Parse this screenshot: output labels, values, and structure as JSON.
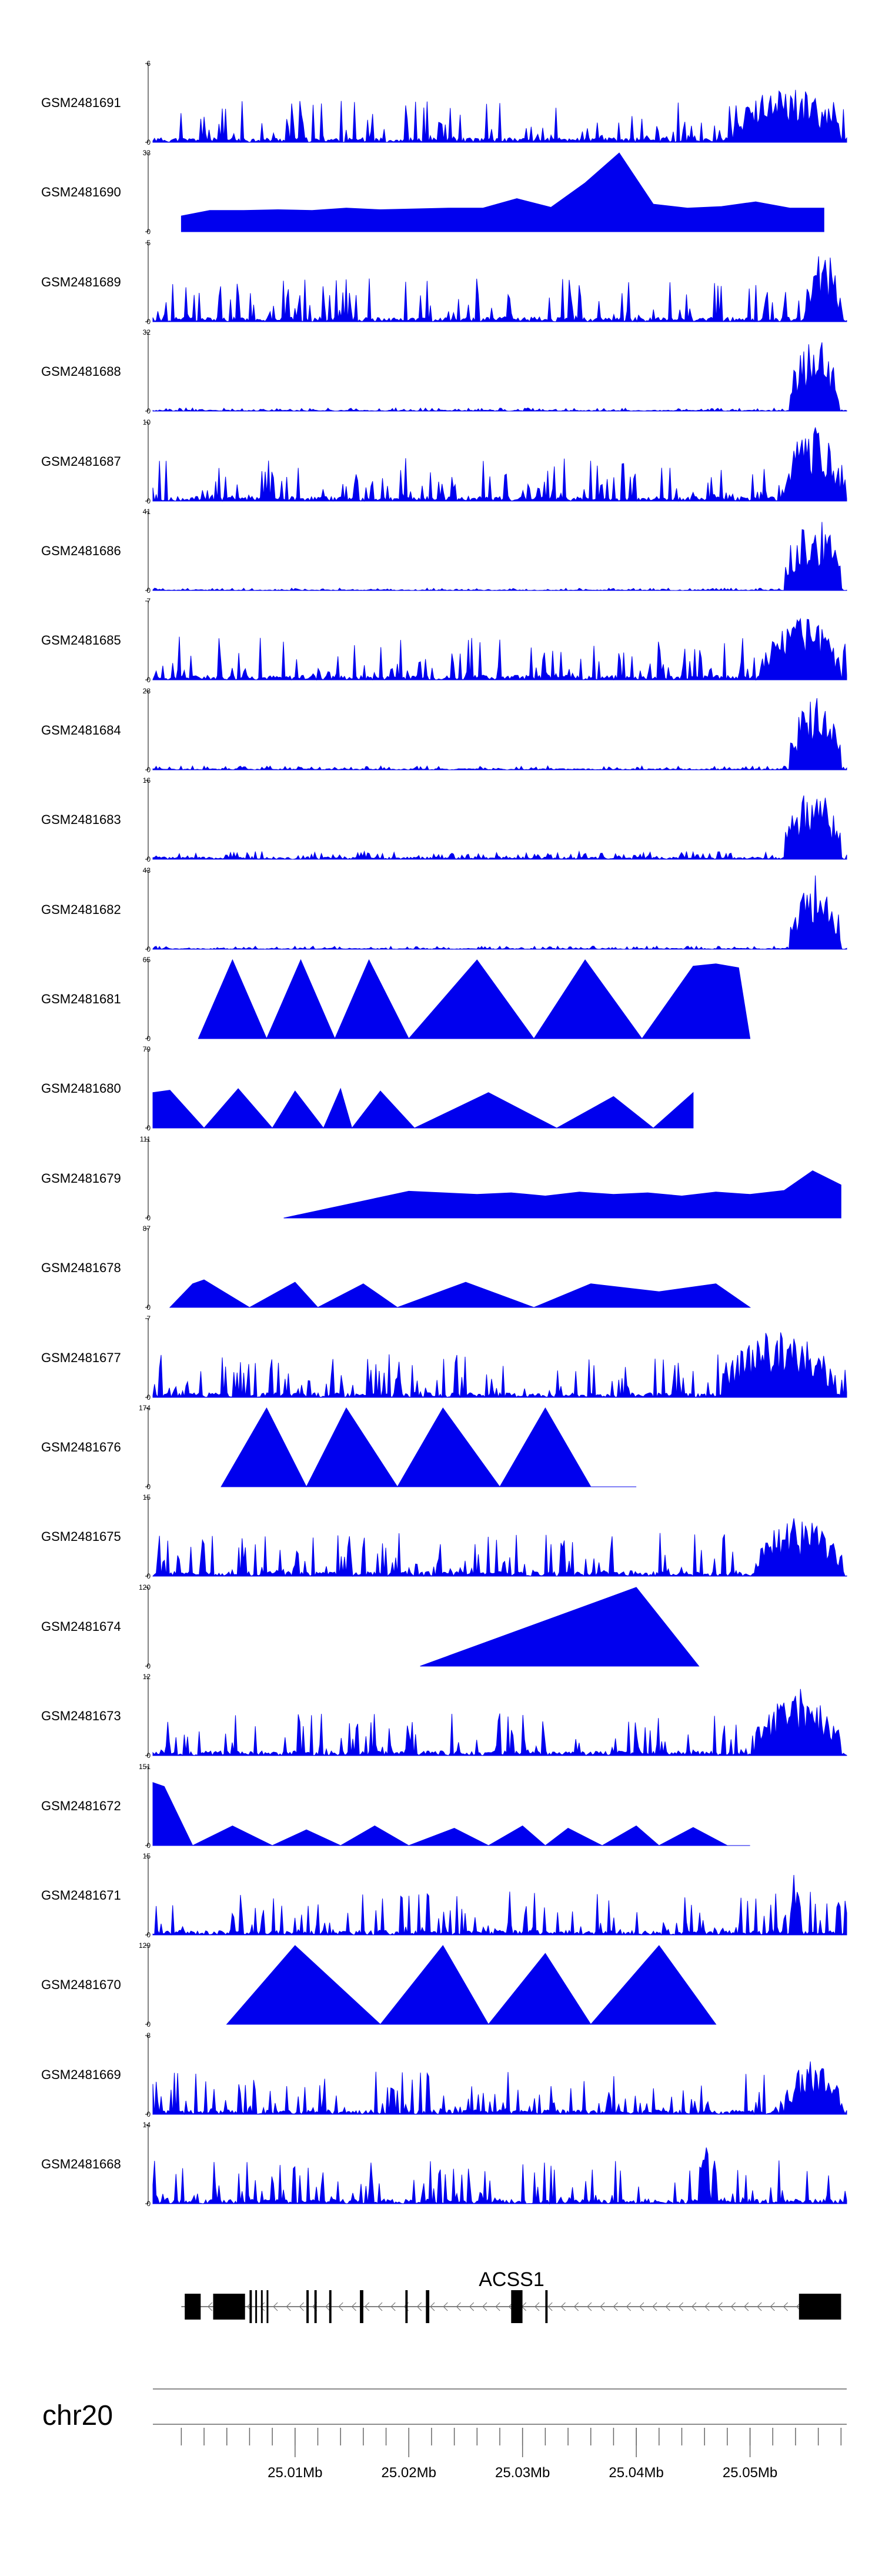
{
  "chart_data": {
    "type": "area",
    "title": "",
    "chromosome": "chr20",
    "x_range_mb": [
      24.9975,
      25.0585
    ],
    "tracks": [
      {
        "name": "GSM2481691",
        "ymax": "6",
        "ymin": "0",
        "style": "dense",
        "seed": 11,
        "density": 0.28,
        "hotspot": [
          [
            25.0485,
            25.058,
            0.7
          ]
        ]
      },
      {
        "name": "GSM2481690",
        "ymax": "33",
        "ymin": "0",
        "style": "sparse",
        "seed": 12,
        "x": [
          25.0,
          25.0025,
          25.0055,
          25.0085,
          25.0115,
          25.0145,
          25.0175,
          25.0205,
          25.0235,
          25.0265,
          25.0295,
          25.0325,
          25.0355,
          25.0385,
          25.0415,
          25.0445,
          25.0475,
          25.0505,
          25.0535,
          25.0565
        ],
        "y": [
          0.2,
          0.27,
          0.27,
          0.28,
          0.27,
          0.3,
          0.28,
          0.29,
          0.3,
          0.3,
          0.42,
          0.31,
          0.62,
          1.0,
          0.35,
          0.3,
          0.32,
          0.38,
          0.3,
          0.3
        ]
      },
      {
        "name": "GSM2481689",
        "ymax": "5",
        "ymin": "0",
        "style": "dense",
        "seed": 13,
        "density": 0.3,
        "hotspot": [
          [
            25.055,
            25.058,
            0.95
          ]
        ]
      },
      {
        "name": "GSM2481688",
        "ymax": "32",
        "ymin": "0",
        "style": "peak",
        "seed": 14,
        "base": 0.04,
        "hotspot": [
          [
            25.0535,
            25.0578,
            0.95
          ]
        ]
      },
      {
        "name": "GSM2481687",
        "ymax": "10",
        "ymin": "0",
        "style": "dense",
        "seed": 15,
        "density": 0.32,
        "hotspot": [
          [
            25.053,
            25.058,
            0.95
          ]
        ]
      },
      {
        "name": "GSM2481686",
        "ymax": "41",
        "ymin": "0",
        "style": "peak",
        "seed": 16,
        "base": 0.03,
        "hotspot": [
          [
            25.053,
            25.058,
            0.95
          ]
        ]
      },
      {
        "name": "GSM2481685",
        "ymax": "7",
        "ymin": "0",
        "style": "dense",
        "seed": 17,
        "density": 0.3,
        "hotspot": [
          [
            25.051,
            25.058,
            0.8
          ]
        ]
      },
      {
        "name": "GSM2481684",
        "ymax": "28",
        "ymin": "0",
        "style": "peak",
        "seed": 18,
        "base": 0.05,
        "hotspot": [
          [
            25.0535,
            25.058,
            0.95
          ]
        ]
      },
      {
        "name": "GSM2481683",
        "ymax": "16",
        "ymin": "0",
        "style": "peak",
        "seed": 19,
        "base": 0.1,
        "hotspot": [
          [
            25.053,
            25.058,
            0.9
          ]
        ]
      },
      {
        "name": "GSM2481682",
        "ymax": "43",
        "ymin": "0",
        "style": "peak",
        "seed": 20,
        "base": 0.04,
        "hotspot": [
          [
            25.0535,
            25.058,
            0.95
          ]
        ]
      },
      {
        "name": "GSM2481681",
        "ymax": "65",
        "ymin": "0",
        "style": "sparse",
        "seed": 21,
        "x": [
          25.0015,
          25.0045,
          25.0075,
          25.0105,
          25.0135,
          25.0165,
          25.02,
          25.026,
          25.031,
          25.0355,
          25.0405,
          25.045,
          25.047,
          25.049,
          25.05
        ],
        "y": [
          0,
          1.0,
          0,
          1.0,
          0,
          1.0,
          0,
          1.0,
          0,
          1.0,
          0,
          0.92,
          0.95,
          0.9,
          0
        ]
      },
      {
        "name": "GSM2481680",
        "ymax": "79",
        "ymin": "0",
        "style": "sparse",
        "seed": 22,
        "x": [
          24.9975,
          24.999,
          25.002,
          25.005,
          25.008,
          25.01,
          25.0125,
          25.014,
          25.015,
          25.0175,
          25.0205,
          25.027,
          25.033,
          25.038,
          25.0415,
          25.045
        ],
        "y": [
          0.45,
          0.48,
          0,
          0.5,
          0,
          0.47,
          0,
          0.5,
          0,
          0.47,
          0,
          0.45,
          0,
          0.4,
          0,
          0.45
        ]
      },
      {
        "name": "GSM2481679",
        "ymax": "111",
        "ymin": "0",
        "style": "sparse",
        "seed": 23,
        "x": [
          25.009,
          25.02,
          25.026,
          25.029,
          25.032,
          25.035,
          25.038,
          25.041,
          25.044,
          25.047,
          25.05,
          25.053,
          25.0555,
          25.058
        ],
        "y": [
          0,
          0.34,
          0.3,
          0.32,
          0.28,
          0.33,
          0.3,
          0.32,
          0.28,
          0.33,
          0.3,
          0.35,
          0.6,
          0.42
        ]
      },
      {
        "name": "GSM2481678",
        "ymax": "87",
        "ymin": "0",
        "style": "sparse",
        "seed": 24,
        "x": [
          24.999,
          25.001,
          25.002,
          25.006,
          25.01,
          25.012,
          25.016,
          25.019,
          25.025,
          25.031,
          25.036,
          25.042,
          25.047,
          25.05
        ],
        "y": [
          0,
          0.3,
          0.35,
          0,
          0.32,
          0,
          0.3,
          0,
          0.32,
          0,
          0.3,
          0.2,
          0.3,
          0
        ]
      },
      {
        "name": "GSM2481677",
        "ymax": "7",
        "ymin": "0",
        "style": "dense",
        "seed": 25,
        "density": 0.34,
        "hotspot": [
          [
            25.0475,
            25.0575,
            0.85
          ]
        ]
      },
      {
        "name": "GSM2481676",
        "ymax": "174",
        "ymin": "0",
        "style": "sparse",
        "seed": 26,
        "x": [
          25.0035,
          25.0075,
          25.011,
          25.0145,
          25.019,
          25.023,
          25.028,
          25.032,
          25.036,
          25.04
        ],
        "y": [
          0,
          1.0,
          0,
          1.0,
          0,
          1.0,
          0,
          1.0,
          0,
          0
        ]
      },
      {
        "name": "GSM2481675",
        "ymax": "15",
        "ymin": "0",
        "style": "dense",
        "seed": 27,
        "density": 0.34,
        "hotspot": [
          [
            25.0505,
            25.058,
            0.75
          ]
        ]
      },
      {
        "name": "GSM2481674",
        "ymax": "120",
        "ymin": "0",
        "style": "sparse",
        "seed": 28,
        "x": [
          25.021,
          25.04,
          25.0455
        ],
        "y": [
          0,
          1.0,
          0
        ]
      },
      {
        "name": "GSM2481673",
        "ymax": "12",
        "ymin": "0",
        "style": "dense",
        "seed": 29,
        "density": 0.28,
        "hotspot": [
          [
            25.0505,
            25.058,
            0.85
          ]
        ]
      },
      {
        "name": "GSM2481672",
        "ymax": "151",
        "ymin": "0",
        "style": "sparse",
        "seed": 30,
        "x": [
          24.9975,
          24.9985,
          25.001,
          25.0045,
          25.008,
          25.011,
          25.014,
          25.017,
          25.02,
          25.024,
          25.027,
          25.03,
          25.032,
          25.034,
          25.037,
          25.04,
          25.042,
          25.045,
          25.048,
          25.05
        ],
        "y": [
          0.8,
          0.75,
          0,
          0.25,
          0,
          0.2,
          0,
          0.25,
          0,
          0.22,
          0,
          0.25,
          0,
          0.22,
          0,
          0.25,
          0,
          0.23,
          0,
          0
        ]
      },
      {
        "name": "GSM2481671",
        "ymax": "15",
        "ymin": "0",
        "style": "dense",
        "seed": 31,
        "density": 0.3,
        "hotspot": [
          [
            25.0535,
            25.0545,
            0.9
          ]
        ]
      },
      {
        "name": "GSM2481670",
        "ymax": "129",
        "ymin": "0",
        "style": "sparse",
        "seed": 32,
        "x": [
          25.004,
          25.01,
          25.0175,
          25.023,
          25.027,
          25.032,
          25.036,
          25.042,
          25.047
        ],
        "y": [
          0,
          1.0,
          0,
          1.0,
          0,
          0.9,
          0,
          1.0,
          0
        ]
      },
      {
        "name": "GSM2481669",
        "ymax": "8",
        "ymin": "0",
        "style": "dense",
        "seed": 33,
        "density": 0.36,
        "hotspot": [
          [
            25.053,
            25.058,
            0.7
          ]
        ]
      },
      {
        "name": "GSM2481668",
        "ymax": "14",
        "ymin": "0",
        "style": "dense",
        "seed": 34,
        "density": 0.3,
        "hotspot": [
          [
            25.0455,
            25.0465,
            0.9
          ]
        ]
      }
    ],
    "gene": {
      "name": "ACSS1",
      "strand": "-",
      "start_mb": 25.0,
      "end_mb": 25.058,
      "exons_mb": [
        [
          25.0003,
          25.0017
        ],
        [
          25.0028,
          25.0056
        ],
        [
          25.006,
          25.0062
        ],
        [
          25.0065,
          25.0066
        ],
        [
          25.007,
          25.0071
        ],
        [
          25.0075,
          25.0076
        ],
        [
          25.011,
          25.0112
        ],
        [
          25.0117,
          25.0119
        ],
        [
          25.013,
          25.0132
        ],
        [
          25.0157,
          25.016
        ],
        [
          25.0197,
          25.0199
        ],
        [
          25.0215,
          25.0218
        ],
        [
          25.029,
          25.03
        ],
        [
          25.032,
          25.0322
        ],
        [
          25.0543,
          25.058
        ]
      ]
    },
    "axis": {
      "tick_labels": [
        "25.01Mb",
        "25.02Mb",
        "25.03Mb",
        "25.04Mb",
        "25.05Mb"
      ],
      "tick_values_mb": [
        25.01,
        25.02,
        25.03,
        25.04,
        25.05
      ]
    },
    "colors": {
      "fill": "#0000ee",
      "gene": "#000000",
      "axis": "#666666"
    }
  }
}
